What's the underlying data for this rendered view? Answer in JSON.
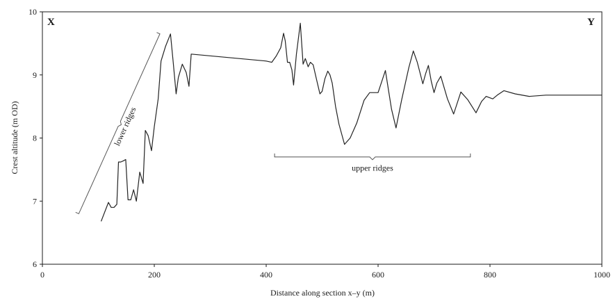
{
  "chart_data": {
    "type": "line",
    "title": "",
    "xlabel": "Distance along section x–y (m)",
    "ylabel": "Crest altitude (m OD)",
    "xlim": [
      0,
      1000
    ],
    "ylim": [
      6,
      10
    ],
    "xticks": [
      0,
      200,
      400,
      600,
      800,
      1000
    ],
    "yticks": [
      6,
      7,
      8,
      9,
      10
    ],
    "grid": false,
    "corner_labels": {
      "left": "X",
      "right": "Y"
    },
    "annotations": [
      {
        "text": "lower ridges",
        "x_range": [
          65,
          210
        ],
        "y_range": [
          6.8,
          9.65
        ]
      },
      {
        "text": "upper ridges",
        "x_range": [
          415,
          765
        ],
        "y": 7.7
      }
    ],
    "series": [
      {
        "x": [
          105,
          118,
          123,
          128,
          133,
          136,
          140,
          145,
          149,
          153,
          158,
          163,
          168,
          174,
          180,
          184,
          189,
          195,
          200,
          207,
          212,
          220,
          229,
          234,
          239,
          243,
          250,
          257,
          262,
          266,
          400,
          410,
          418,
          426,
          431,
          434,
          438,
          442,
          446,
          449,
          454,
          461,
          466,
          470,
          475,
          479,
          484,
          490,
          496,
          500,
          505,
          510,
          514,
          518,
          524,
          530,
          540,
          550,
          562,
          575,
          585,
          600,
          613,
          624,
          632,
          642,
          655,
          663,
          670,
          680,
          685,
          690,
          695,
          700,
          705,
          712,
          724,
          735,
          748,
          760,
          775,
          785,
          793,
          805,
          813,
          825,
          845,
          870,
          900,
          940,
          1000
        ],
        "y": [
          6.68,
          6.98,
          6.9,
          6.9,
          6.95,
          7.62,
          7.62,
          7.64,
          7.66,
          7.02,
          7.02,
          7.18,
          7.0,
          7.46,
          7.28,
          8.12,
          8.04,
          7.8,
          8.18,
          8.62,
          9.22,
          9.45,
          9.65,
          9.18,
          8.7,
          8.96,
          9.17,
          9.04,
          8.82,
          9.33,
          9.22,
          9.2,
          9.3,
          9.43,
          9.66,
          9.54,
          9.2,
          9.2,
          9.08,
          8.84,
          9.33,
          9.82,
          9.17,
          9.26,
          9.13,
          9.2,
          9.16,
          8.93,
          8.7,
          8.74,
          8.94,
          9.06,
          9.0,
          8.87,
          8.5,
          8.22,
          7.9,
          8.0,
          8.24,
          8.6,
          8.72,
          8.72,
          9.07,
          8.46,
          8.16,
          8.6,
          9.12,
          9.38,
          9.2,
          8.86,
          9.02,
          9.15,
          8.9,
          8.72,
          8.87,
          8.98,
          8.62,
          8.38,
          8.73,
          8.61,
          8.4,
          8.58,
          8.66,
          8.62,
          8.68,
          8.75,
          8.7,
          8.66,
          8.68,
          8.68,
          8.68
        ]
      }
    ]
  }
}
